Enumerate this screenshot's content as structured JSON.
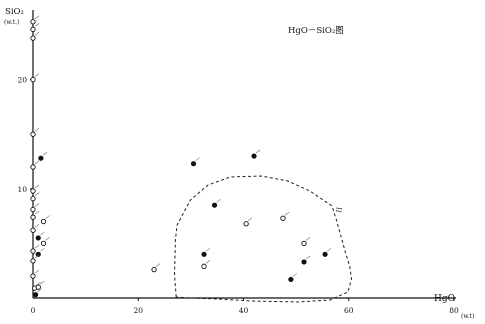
{
  "chart_data": {
    "type": "scatter",
    "title": "HgO－SiO₂图",
    "xlabel": "HgO",
    "xunit": "(w.t)",
    "ylabel": "SiO₂",
    "yunit": "(w.t.)",
    "xlim": [
      0,
      80
    ],
    "ylim": [
      0,
      25
    ],
    "xticks": [
      {
        "v": 0,
        "label": "0"
      },
      {
        "v": 20,
        "label": "20"
      },
      {
        "v": 40,
        "label": "40"
      },
      {
        "v": 60,
        "label": "60"
      },
      {
        "v": 80,
        "label": "80"
      }
    ],
    "yticks": [
      {
        "v": 10,
        "label": "10"
      },
      {
        "v": 20,
        "label": "20"
      }
    ],
    "grid": false,
    "field_label": "II",
    "series": [
      {
        "marker": "filled",
        "points": [
          [
            0.5,
            0.3
          ],
          [
            1.0,
            4.0
          ],
          [
            1.0,
            5.5
          ],
          [
            1.5,
            12.8
          ],
          [
            30.5,
            12.3
          ],
          [
            34.5,
            8.5
          ],
          [
            32.5,
            4.0
          ],
          [
            42,
            13.0
          ],
          [
            49,
            1.7
          ],
          [
            51.5,
            3.3
          ],
          [
            55.5,
            4.0
          ]
        ]
      },
      {
        "marker": "open",
        "points": [
          [
            0,
            23.8
          ],
          [
            0,
            24.6
          ],
          [
            0,
            25.3
          ],
          [
            0,
            20.0
          ],
          [
            0,
            15.0
          ],
          [
            0,
            12.0
          ],
          [
            0,
            9.8
          ],
          [
            0,
            9.1
          ],
          [
            0,
            8.1
          ],
          [
            0,
            7.4
          ],
          [
            0,
            6.2
          ],
          [
            0,
            4.3
          ],
          [
            0,
            3.4
          ],
          [
            0,
            2.0
          ],
          [
            0.3,
            0.9
          ],
          [
            2.0,
            7.0
          ],
          [
            2.0,
            5.0
          ],
          [
            1.0,
            1.0
          ],
          [
            23.0,
            2.6
          ],
          [
            32.5,
            2.9
          ],
          [
            40.5,
            6.8
          ],
          [
            47.5,
            7.3
          ],
          [
            51.5,
            5.0
          ]
        ]
      }
    ]
  }
}
